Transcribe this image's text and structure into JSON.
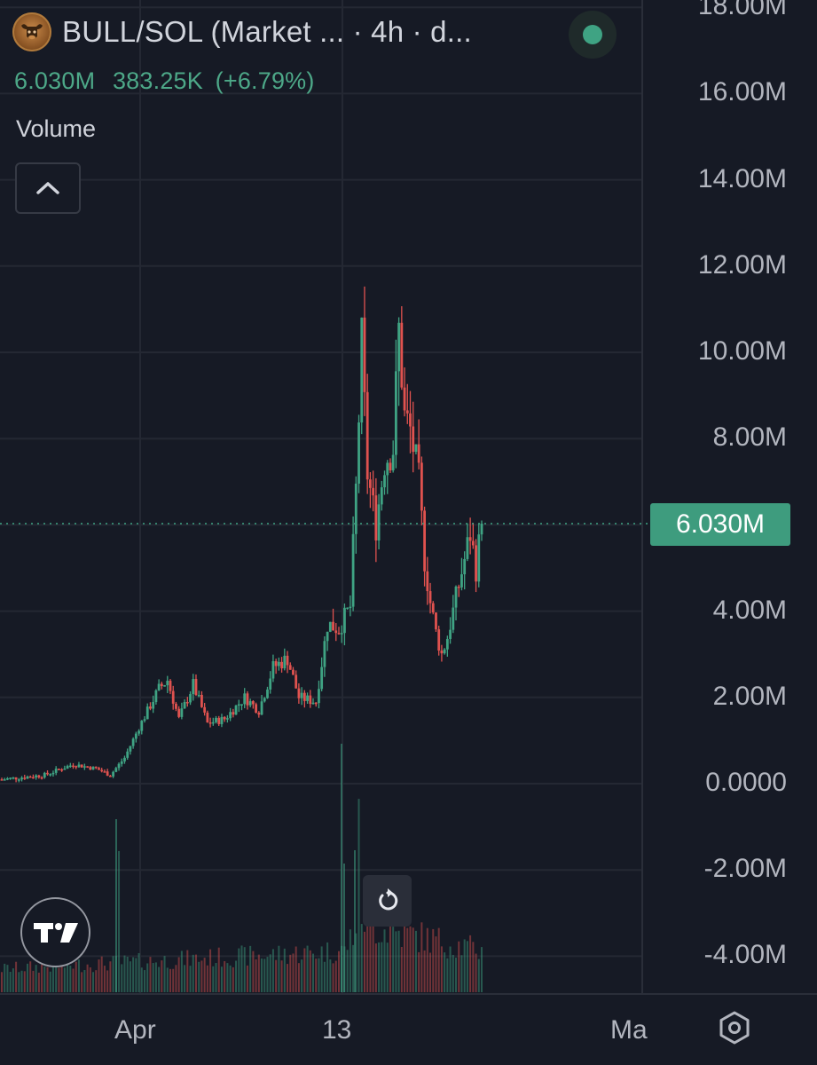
{
  "header": {
    "symbol": "BULL/SOL (Market ... · 4h · d...",
    "logo_icon": "bull-logo-icon",
    "status": "market-open-dot"
  },
  "price": {
    "last": "6.030M",
    "change": "383.25K",
    "change_pct": "(+6.79%)"
  },
  "indicator": {
    "label": "Volume"
  },
  "controls": {
    "collapse_icon": "chevron-up-icon",
    "reset_icon": "reset-icon",
    "settings_icon": "settings-icon",
    "brand_icon": "tradingview-logo-icon"
  },
  "colors": {
    "up": "#3fa383",
    "down": "#e0524f",
    "background": "#161a25",
    "grid": "#242833",
    "price_line": "#3fa383"
  },
  "y_axis": {
    "labels": [
      "18.00M",
      "16.00M",
      "14.00M",
      "12.00M",
      "10.00M",
      "8.00M",
      "6.030M",
      "4.00M",
      "2.00M",
      "0.0000",
      "-2.00M",
      "-4.00M"
    ],
    "current_price_label": "6.030M"
  },
  "x_axis": {
    "labels": [
      "Apr",
      "13",
      "Ma"
    ]
  },
  "chart_data": {
    "type": "candlestick",
    "interval": "4h",
    "current_price": 6.03,
    "ylim": [
      -4.8,
      18.3
    ],
    "grid": true,
    "anchors": [
      [
        0,
        0.1
      ],
      [
        15,
        0.2
      ],
      [
        25,
        0.45
      ],
      [
        33,
        0.35
      ],
      [
        38,
        0.2
      ],
      [
        43,
        0.6
      ],
      [
        48,
        1.3
      ],
      [
        55,
        2.2
      ],
      [
        58,
        2.4
      ],
      [
        62,
        1.5
      ],
      [
        67,
        2.3
      ],
      [
        72,
        1.4
      ],
      [
        78,
        1.5
      ],
      [
        85,
        2.0
      ],
      [
        90,
        1.7
      ],
      [
        95,
        2.7
      ],
      [
        100,
        2.9
      ],
      [
        104,
        2.0
      ],
      [
        110,
        1.9
      ],
      [
        114,
        3.7
      ],
      [
        118,
        3.6
      ],
      [
        122,
        4.1
      ],
      [
        124,
        6.8
      ],
      [
        126,
        10.2
      ],
      [
        128,
        7.2
      ],
      [
        131,
        6.0
      ],
      [
        134,
        7.5
      ],
      [
        137,
        7.8
      ],
      [
        139,
        10.5
      ],
      [
        141,
        8.5
      ],
      [
        143,
        8.2
      ],
      [
        146,
        7.0
      ],
      [
        148,
        5.2
      ],
      [
        150,
        4.2
      ],
      [
        152,
        3.5
      ],
      [
        154,
        3.0
      ],
      [
        156,
        3.4
      ],
      [
        158,
        4.0
      ],
      [
        160,
        4.6
      ],
      [
        162,
        5.2
      ],
      [
        164,
        5.8
      ],
      [
        166,
        5.0
      ],
      [
        168,
        6.03
      ]
    ],
    "volume_profile": [
      [
        0,
        0.15
      ],
      [
        40,
        0.2
      ],
      [
        41,
        1.0
      ],
      [
        42,
        0.2
      ],
      [
        120,
        0.3
      ],
      [
        124,
        0.5
      ],
      [
        125,
        1.2
      ],
      [
        126,
        0.6
      ],
      [
        130,
        0.5
      ],
      [
        140,
        0.45
      ],
      [
        168,
        0.3
      ]
    ]
  }
}
